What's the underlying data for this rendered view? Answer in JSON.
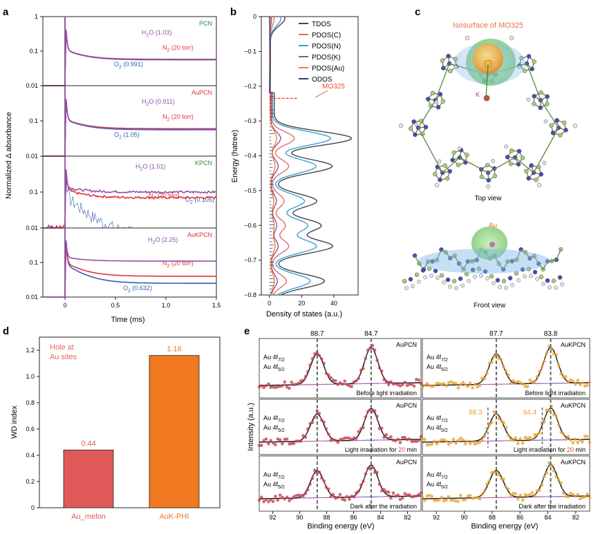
{
  "panels": {
    "a": "a",
    "b": "b",
    "c": "c",
    "d": "d",
    "e": "e"
  },
  "chart_data": [
    {
      "panel": "a",
      "type": "line",
      "xlabel": "Time (ms)",
      "ylabel": "Normalized Δ absorbance",
      "xlim": [
        -0.22,
        1.5
      ],
      "xticks": [
        "0",
        "0.5",
        "1.0",
        "1.5"
      ],
      "yscale": "log",
      "ylim": [
        0.01,
        1
      ],
      "yticks": [
        "1",
        "0.1",
        "0.01"
      ],
      "colors": {
        "H2O": "#8e50a5",
        "N2": "#e83040",
        "O2": "#2f5fae"
      },
      "subplots": [
        {
          "name": "PCN",
          "labels": {
            "H2O": "H₂O (1.03)",
            "N2": "N₂ (20 torr)",
            "O2": "O₂ (0.991)"
          },
          "end_values": {
            "H2O": 0.058,
            "N2": 0.057,
            "O2": 0.056
          }
        },
        {
          "name": "AuPCN",
          "labels": {
            "H2O": "H₂O (0.911)",
            "N2": "N₂ (20 torr)",
            "O2": "O₂ (1.05)"
          },
          "end_values": {
            "H2O": 0.058,
            "N2": 0.06,
            "O2": 0.056
          }
        },
        {
          "name": "KPCN",
          "labels": {
            "H2O": "H₂O (1.51)",
            "N2": "N₂ (20 torr)",
            "O2": "O₂ (0.105)"
          },
          "end_values": {
            "H2O": 0.1,
            "N2": 0.07,
            "O2": 0.006
          }
        },
        {
          "name": "AuKPCN",
          "labels": {
            "H2O": "H₂O (2.25)",
            "N2": "N₂ (20 torr)",
            "O2": "O₂ (0.632)"
          },
          "end_values": {
            "H2O": 0.11,
            "N2": 0.04,
            "O2": 0.025
          }
        }
      ]
    },
    {
      "panel": "b",
      "type": "line",
      "xlabel": "Density of states (a.u.)",
      "ylabel": "Energy (hatree)",
      "xlim": [
        -5,
        55
      ],
      "xticks": [
        "0",
        "20",
        "40"
      ],
      "ylim": [
        -0.8,
        0
      ],
      "yticks": [
        "0",
        "−0.1",
        "−0.2",
        "−0.3",
        "−0.4",
        "−0.5",
        "−0.6",
        "−0.7",
        "−0.8"
      ],
      "legend": [
        "TDOS",
        "PDOS(C)",
        "PDOS(N)",
        "PDOS(K)",
        "PDOS(Au)",
        "ODOS"
      ],
      "legend_colors": [
        "#444444",
        "#e56a6a",
        "#3a9fd6",
        "#8e50a5",
        "#f08030",
        "#2a3a80"
      ],
      "annotation": "MO325",
      "annotation_energy": -0.235
    },
    {
      "panel": "d",
      "type": "bar",
      "ylabel": "WD index",
      "ylim": [
        0,
        1.3
      ],
      "yticks": [
        "0",
        "0.2",
        "0.4",
        "0.6",
        "0.8",
        "1.0",
        "1.2"
      ],
      "categories": [
        "Au_melon",
        "AuK-PHI"
      ],
      "values": [
        0.44,
        1.16
      ],
      "value_labels": [
        "0.44",
        "1.16"
      ],
      "colors": [
        "#e05a5a",
        "#f07820"
      ],
      "note_line1": "Hole at",
      "note_line2": "Au sites"
    },
    {
      "panel": "e",
      "type": "scatter",
      "xlabel": "Binding energy (eV)",
      "xlim": [
        93,
        81
      ],
      "xticks": [
        "92",
        "90",
        "88",
        "86",
        "84",
        "82"
      ],
      "ylabel": "Intensity (a.u.)",
      "label_f72": "Au 4f",
      "sub_f72": "7/2",
      "label_f52": "Au 4f",
      "sub_f52": "5/2",
      "columns": [
        {
          "sample": "AuPCN",
          "peaks": [
            "88.7",
            "84.7"
          ],
          "peak_energies": [
            88.7,
            84.7
          ],
          "color": "#c04050"
        },
        {
          "sample": "AuKPCN",
          "peaks": [
            "87.7",
            "83.8"
          ],
          "peak_energies": [
            87.7,
            83.8
          ],
          "color": "#e8a030",
          "extra_peaks": [
            "88.3",
            "84.4"
          ]
        }
      ],
      "rows": [
        {
          "condition": "Before light irradiation"
        },
        {
          "condition_pre": "Light irradiation for ",
          "condition_num": "20",
          "condition_post": " min"
        },
        {
          "condition": "Dark after the irradiation"
        }
      ]
    }
  ],
  "panel_c": {
    "isosurface": "Isosurface of MO325",
    "k_label": "K",
    "au_label": "Au",
    "top_caption": "Top view",
    "front_caption": "Front view"
  }
}
